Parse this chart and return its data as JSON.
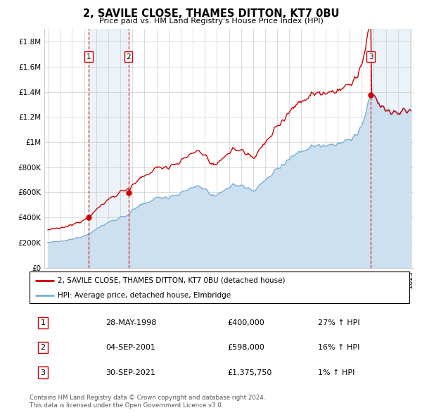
{
  "title": "2, SAVILE CLOSE, THAMES DITTON, KT7 0BU",
  "subtitle": "Price paid vs. HM Land Registry's House Price Index (HPI)",
  "ylim": [
    0,
    1900000
  ],
  "yticks": [
    0,
    200000,
    400000,
    600000,
    800000,
    1000000,
    1200000,
    1400000,
    1600000,
    1800000
  ],
  "ytick_labels": [
    "£0",
    "£200K",
    "£400K",
    "£600K",
    "£800K",
    "£1M",
    "£1.2M",
    "£1.4M",
    "£1.6M",
    "£1.8M"
  ],
  "sale_times": [
    1998.37,
    2001.67,
    2021.75
  ],
  "sale_prices": [
    400000,
    598000,
    1375750
  ],
  "sale_labels": [
    "1",
    "2",
    "3"
  ],
  "sale_pct_hpi": [
    "27%",
    "16%",
    "1%"
  ],
  "hpi_label": "HPI: Average price, detached house, Elmbridge",
  "property_label": "2, SAVILE CLOSE, THAMES DITTON, KT7 0BU (detached house)",
  "red_color": "#cc0000",
  "blue_color": "#7ab0d4",
  "blue_fill": "#cde0f0",
  "grid_color": "#cccccc",
  "footnote1": "Contains HM Land Registry data © Crown copyright and database right 2024.",
  "footnote2": "This data is licensed under the Open Government Licence v3.0.",
  "legend_label1_date": "28-MAY-1998",
  "legend_label1_price": "£400,000",
  "legend_label2_date": "04-SEP-2001",
  "legend_label2_price": "£598,000",
  "legend_label3_date": "30-SEP-2021",
  "legend_label3_price": "£1,375,750"
}
